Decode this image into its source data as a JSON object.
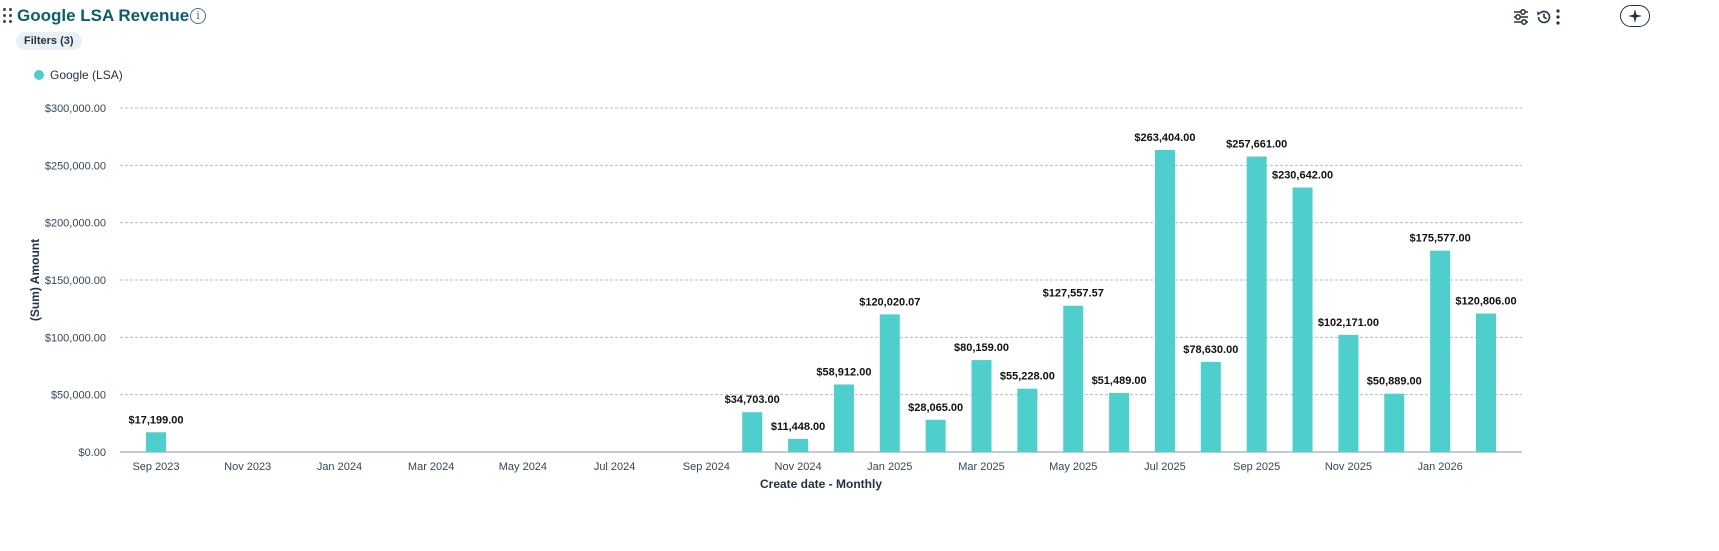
{
  "header": {
    "title": "Google LSA Revenue",
    "info_icon": "info-icon",
    "ai_icon": "sparkle-icon",
    "settings_icon": "sliders-icon",
    "history_icon": "history-icon",
    "more_icon": "more-vertical-icon"
  },
  "filters": {
    "label": "Filters (3)"
  },
  "chart_data": {
    "type": "bar",
    "xlabel": "Create date - Monthly",
    "ylabel": "(Sum) Amount",
    "ylim": [
      0,
      300000
    ],
    "yticks": [
      "$0.00",
      "$50,000.00",
      "$100,000.00",
      "$150,000.00",
      "$200,000.00",
      "$250,000.00",
      "$300,000.00"
    ],
    "grid": true,
    "legend_position": "top-left",
    "series": [
      {
        "name": "Google (LSA)",
        "color": "#4ecfce"
      }
    ],
    "months": [
      "Sep 2023",
      "Oct 2023",
      "Nov 2023",
      "Dec 2023",
      "Jan 2024",
      "Feb 2024",
      "Mar 2024",
      "Apr 2024",
      "May 2024",
      "Jun 2024",
      "Jul 2024",
      "Aug 2024",
      "Sep 2024",
      "Oct 2024",
      "Nov 2024",
      "Dec 2024",
      "Jan 2025",
      "Feb 2025",
      "Mar 2025",
      "Apr 2025",
      "May 2025",
      "Jun 2025",
      "Jul 2025",
      "Aug 2025",
      "Sep 2025",
      "Oct 2025",
      "Nov 2025",
      "Dec 2025",
      "Jan 2026",
      "Feb 2026"
    ],
    "x_tick_labels": [
      "Sep 2023",
      "Nov 2023",
      "Jan 2024",
      "Mar 2024",
      "May 2024",
      "Jul 2024",
      "Sep 2024",
      "Nov 2024",
      "Jan 2025",
      "Mar 2025",
      "May 2025",
      "Jul 2025",
      "Sep 2025",
      "Nov 2025",
      "Jan 2026"
    ],
    "values": [
      17199,
      null,
      null,
      null,
      null,
      null,
      null,
      null,
      null,
      null,
      null,
      null,
      null,
      34703,
      11448,
      58912,
      120020.07,
      28065,
      80159,
      55228,
      127557.57,
      51489,
      263404,
      78630,
      257661,
      230642,
      102171,
      50889,
      175577,
      120806
    ],
    "data_labels": [
      "$17,199.00",
      "",
      "",
      "",
      "",
      "",
      "",
      "",
      "",
      "",
      "",
      "",
      "",
      "$34,703.00",
      "$11,448.00",
      "$58,912.00",
      "$120,020.07",
      "$28,065.00",
      "$80,159.00",
      "$55,228.00",
      "$127,557.57",
      "$51,489.00",
      "$263,404.00",
      "$78,630.00",
      "$257,661.00",
      "$230,642.00",
      "$102,171.00",
      "$50,889.00",
      "$175,577.00",
      "$120,806.00"
    ]
  }
}
